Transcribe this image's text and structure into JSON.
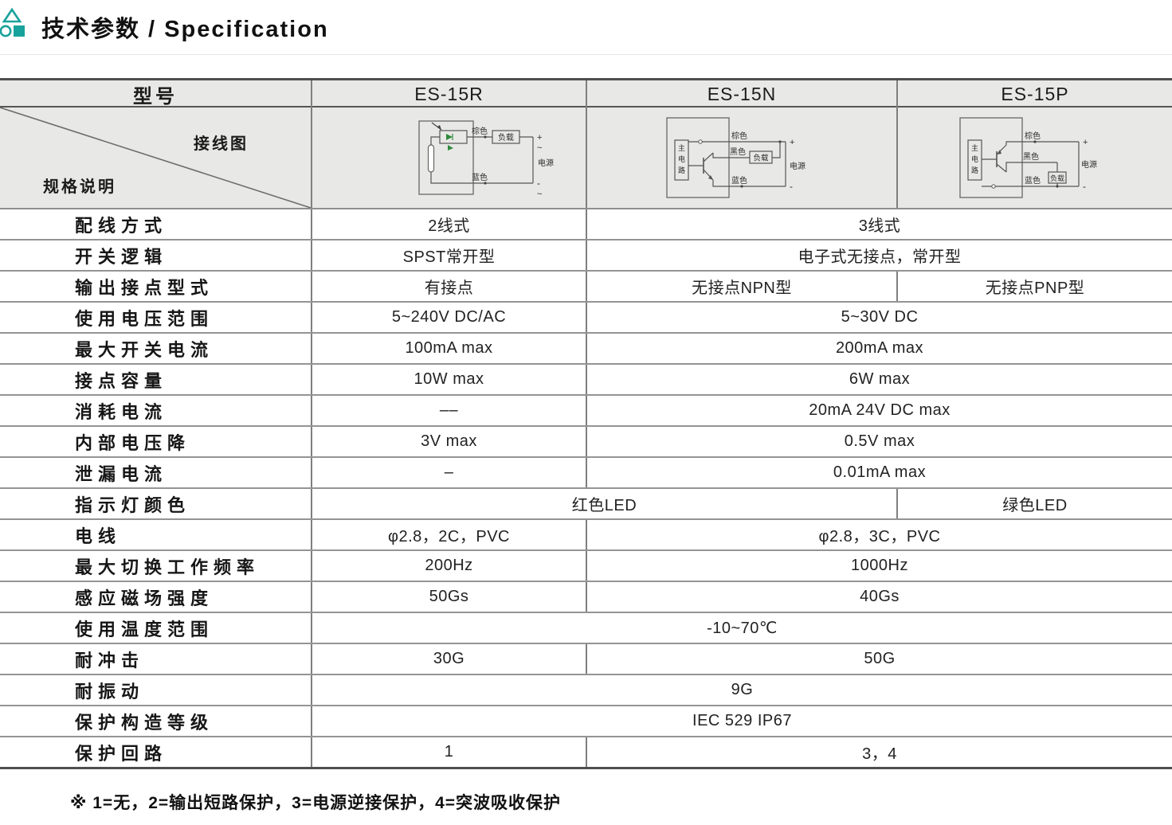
{
  "page_header": {
    "title": "技术参数 / Specification",
    "logo_icon": "triangle-circle-square-logo",
    "accent_color": "#18a29b"
  },
  "colors": {
    "header_bg": "#e8e8e6",
    "border_dark": "#4e4e4e",
    "border_light": "#8e8e8e"
  },
  "table": {
    "header": {
      "model_label": "型号",
      "models": [
        "ES-15R",
        "ES-15N",
        "ES-15P"
      ]
    },
    "corner": {
      "top_label": "接线图",
      "bottom_label": "规格说明"
    },
    "diagram_labels": {
      "brown": "棕色",
      "black": "黑色",
      "blue": "蓝色",
      "load": "负载",
      "power": "电源",
      "main_circuit_chars": [
        "主",
        "电",
        "路"
      ],
      "plus": "+",
      "minus": "-",
      "tilde": "~"
    },
    "rows": [
      {
        "label": "配线方式",
        "cells": [
          {
            "text": "2线式",
            "span": 1
          },
          {
            "text": "3线式",
            "span": 2
          }
        ]
      },
      {
        "label": "开关逻辑",
        "cells": [
          {
            "text": "SPST常开型",
            "span": 1
          },
          {
            "text": "电子式无接点，常开型",
            "span": 2
          }
        ]
      },
      {
        "label": "输出接点型式",
        "cells": [
          {
            "text": "有接点",
            "span": 1
          },
          {
            "text": "无接点NPN型",
            "span": 1
          },
          {
            "text": "无接点PNP型",
            "span": 1
          }
        ]
      },
      {
        "label": "使用电压范围",
        "cells": [
          {
            "text": "5~240V DC/AC",
            "span": 1
          },
          {
            "text": "5~30V DC",
            "span": 2
          }
        ]
      },
      {
        "label": "最大开关电流",
        "cells": [
          {
            "text": "100mA max",
            "span": 1
          },
          {
            "text": "200mA max",
            "span": 2
          }
        ]
      },
      {
        "label": "接点容量",
        "cells": [
          {
            "text": "10W max",
            "span": 1
          },
          {
            "text": "6W max",
            "span": 2
          }
        ]
      },
      {
        "label": "消耗电流",
        "cells": [
          {
            "text": "––",
            "span": 1
          },
          {
            "text": "20mA 24V DC max",
            "span": 2
          }
        ]
      },
      {
        "label": "内部电压降",
        "cells": [
          {
            "text": "3V max",
            "span": 1
          },
          {
            "text": "0.5V max",
            "span": 2
          }
        ]
      },
      {
        "label": "泄漏电流",
        "cells": [
          {
            "text": "–",
            "span": 1
          },
          {
            "text": "0.01mA max",
            "span": 2
          }
        ]
      },
      {
        "label": "指示灯颜色",
        "cells": [
          {
            "text": "红色LED",
            "span": 2
          },
          {
            "text": "绿色LED",
            "span": 1
          }
        ]
      },
      {
        "label": "电线",
        "cells": [
          {
            "text": "φ2.8，2C，PVC",
            "span": 1
          },
          {
            "text": "φ2.8，3C，PVC",
            "span": 2
          }
        ]
      },
      {
        "label": "最大切换工作频率",
        "cells": [
          {
            "text": "200Hz",
            "span": 1
          },
          {
            "text": "1000Hz",
            "span": 2
          }
        ]
      },
      {
        "label": "感应磁场强度",
        "cells": [
          {
            "text": "50Gs",
            "span": 1
          },
          {
            "text": "40Gs",
            "span": 2
          }
        ]
      },
      {
        "label": "使用温度范围",
        "cells": [
          {
            "text": "-10~70℃",
            "span": 3
          }
        ]
      },
      {
        "label": "耐冲击",
        "cells": [
          {
            "text": "30G",
            "span": 1
          },
          {
            "text": "50G",
            "span": 2
          }
        ]
      },
      {
        "label": "耐振动",
        "cells": [
          {
            "text": "9G",
            "span": 3
          }
        ]
      },
      {
        "label": "保护构造等级",
        "cells": [
          {
            "text": "IEC 529 IP67",
            "span": 3
          }
        ]
      },
      {
        "label": "保护回路",
        "cells": [
          {
            "text": "1",
            "span": 1
          },
          {
            "text": "3，4",
            "span": 2
          }
        ]
      }
    ]
  },
  "footnote": "※ 1=无，2=输出短路保护，3=电源逆接保护，4=突波吸收保护"
}
